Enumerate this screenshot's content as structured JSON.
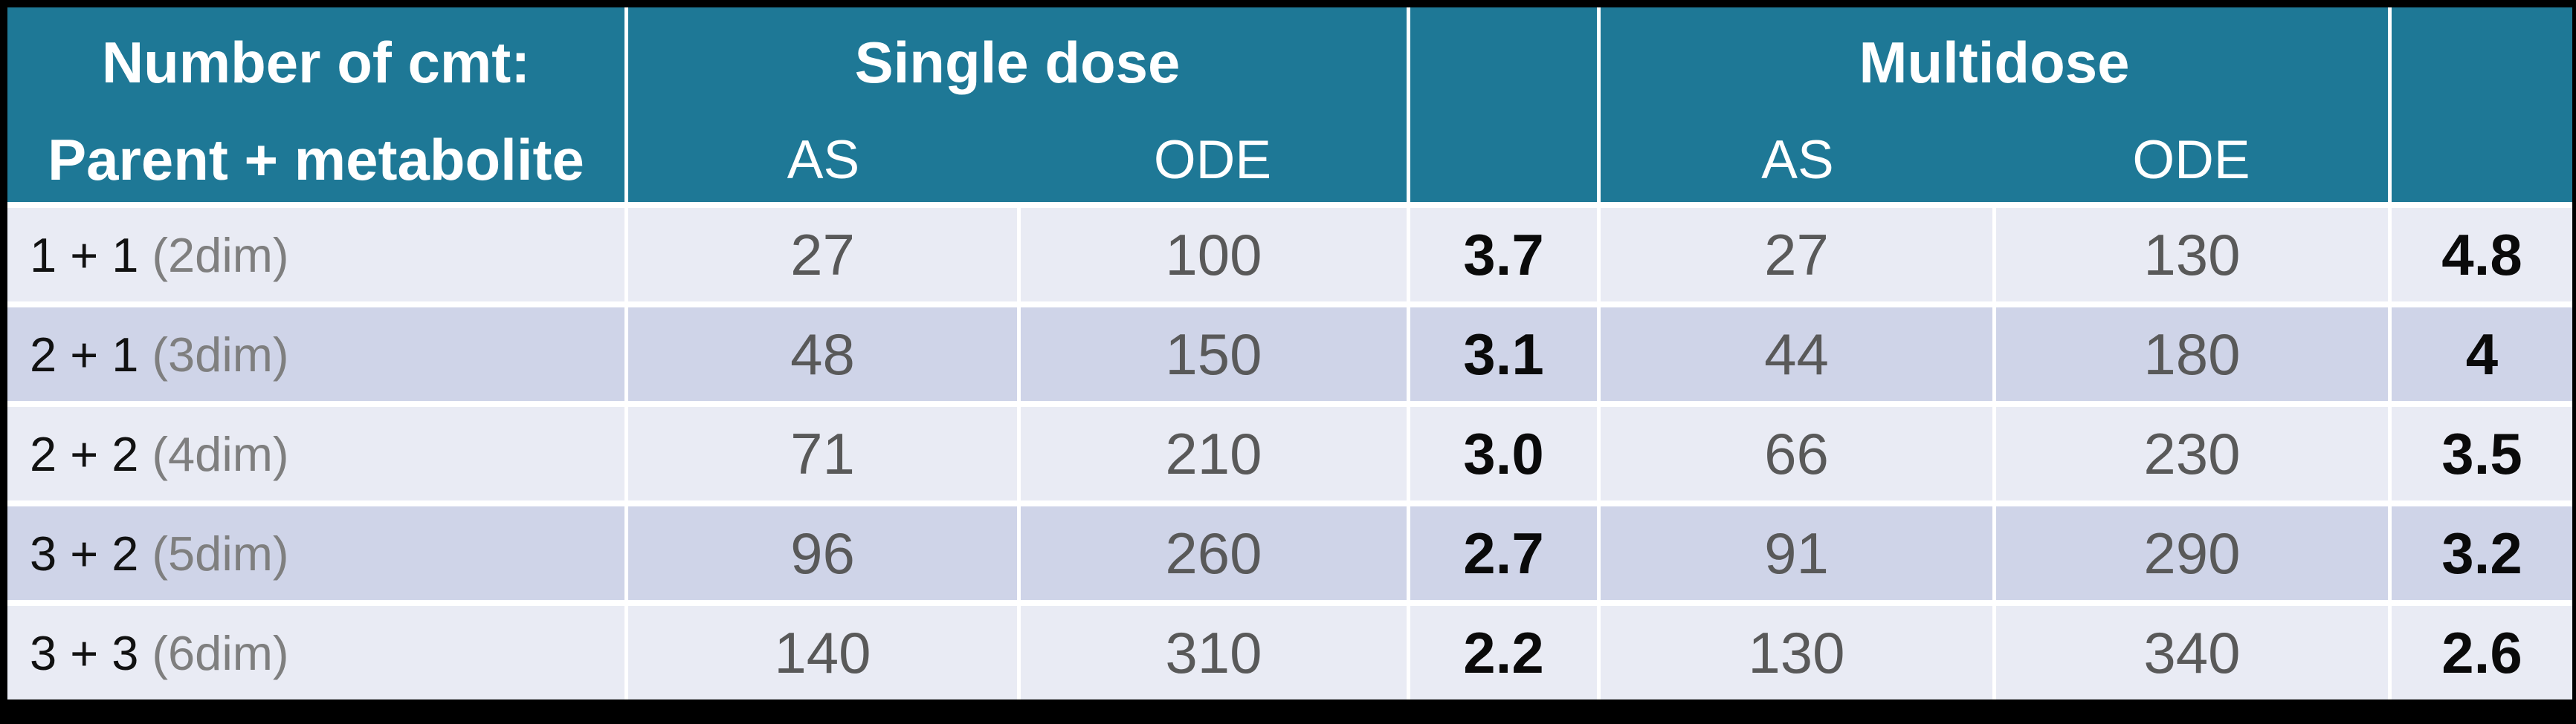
{
  "table": {
    "header": {
      "col1_line1": "Number of cmt:",
      "col1_line2": "Parent + metabolite",
      "single_group": "Single dose",
      "multi_group": "Multidose",
      "single_as": "AS",
      "single_ode": "ODE",
      "multi_as": "AS",
      "multi_ode": "ODE",
      "ratio1": "",
      "ratio2": ""
    },
    "rows": [
      {
        "label": "1 + 1",
        "dim": "(2dim)",
        "s_as": "27",
        "s_ode": "100",
        "s_ratio": "3.7",
        "m_as": "27",
        "m_ode": "130",
        "m_ratio": "4.8"
      },
      {
        "label": "2 + 1",
        "dim": "(3dim)",
        "s_as": "48",
        "s_ode": "150",
        "s_ratio": "3.1",
        "m_as": "44",
        "m_ode": "180",
        "m_ratio": "4"
      },
      {
        "label": "2 + 2",
        "dim": "(4dim)",
        "s_as": "71",
        "s_ode": "210",
        "s_ratio": "3.0",
        "m_as": "66",
        "m_ode": "230",
        "m_ratio": "3.5"
      },
      {
        "label": "3 + 2",
        "dim": "(5dim)",
        "s_as": "96",
        "s_ode": "260",
        "s_ratio": "2.7",
        "m_as": "91",
        "m_ode": "290",
        "m_ratio": "3.2"
      },
      {
        "label": "3 + 3",
        "dim": "(6dim)",
        "s_as": "140",
        "s_ode": "310",
        "s_ratio": "2.2",
        "m_as": "130",
        "m_ode": "340",
        "m_ratio": "2.6"
      }
    ],
    "colors": {
      "header_teal": "#1e7896",
      "row_light": "#e9ebf4",
      "row_dark": "#cfd4e8",
      "grid_line": "#ffffff",
      "number_gray": "#595959",
      "dim_gray": "#7f7f7f",
      "ratio_black": "#0a0a0a",
      "frame_black": "#000000"
    }
  },
  "chart_data": {
    "type": "table",
    "title": "",
    "column_groups": [
      "",
      "Single dose",
      "",
      "Multidose",
      ""
    ],
    "columns": [
      "Number of cmt: Parent + metabolite",
      "AS",
      "ODE",
      "",
      "AS",
      "ODE",
      ""
    ],
    "rows": [
      [
        "1 + 1 (2dim)",
        27,
        100,
        3.7,
        27,
        130,
        4.8
      ],
      [
        "2 + 1 (3dim)",
        48,
        150,
        3.1,
        44,
        180,
        4
      ],
      [
        "2 + 2 (4dim)",
        71,
        210,
        3.0,
        66,
        230,
        3.5
      ],
      [
        "3 + 2 (5dim)",
        96,
        260,
        2.7,
        91,
        290,
        3.2
      ],
      [
        "3 + 3 (6dim)",
        140,
        310,
        2.2,
        130,
        340,
        2.6
      ]
    ],
    "notes": "Unlabeled bold columns hold the ODE/AS ratio for each dose group; grid lines white; header teal; body rows banded lavender/periwinkle"
  }
}
